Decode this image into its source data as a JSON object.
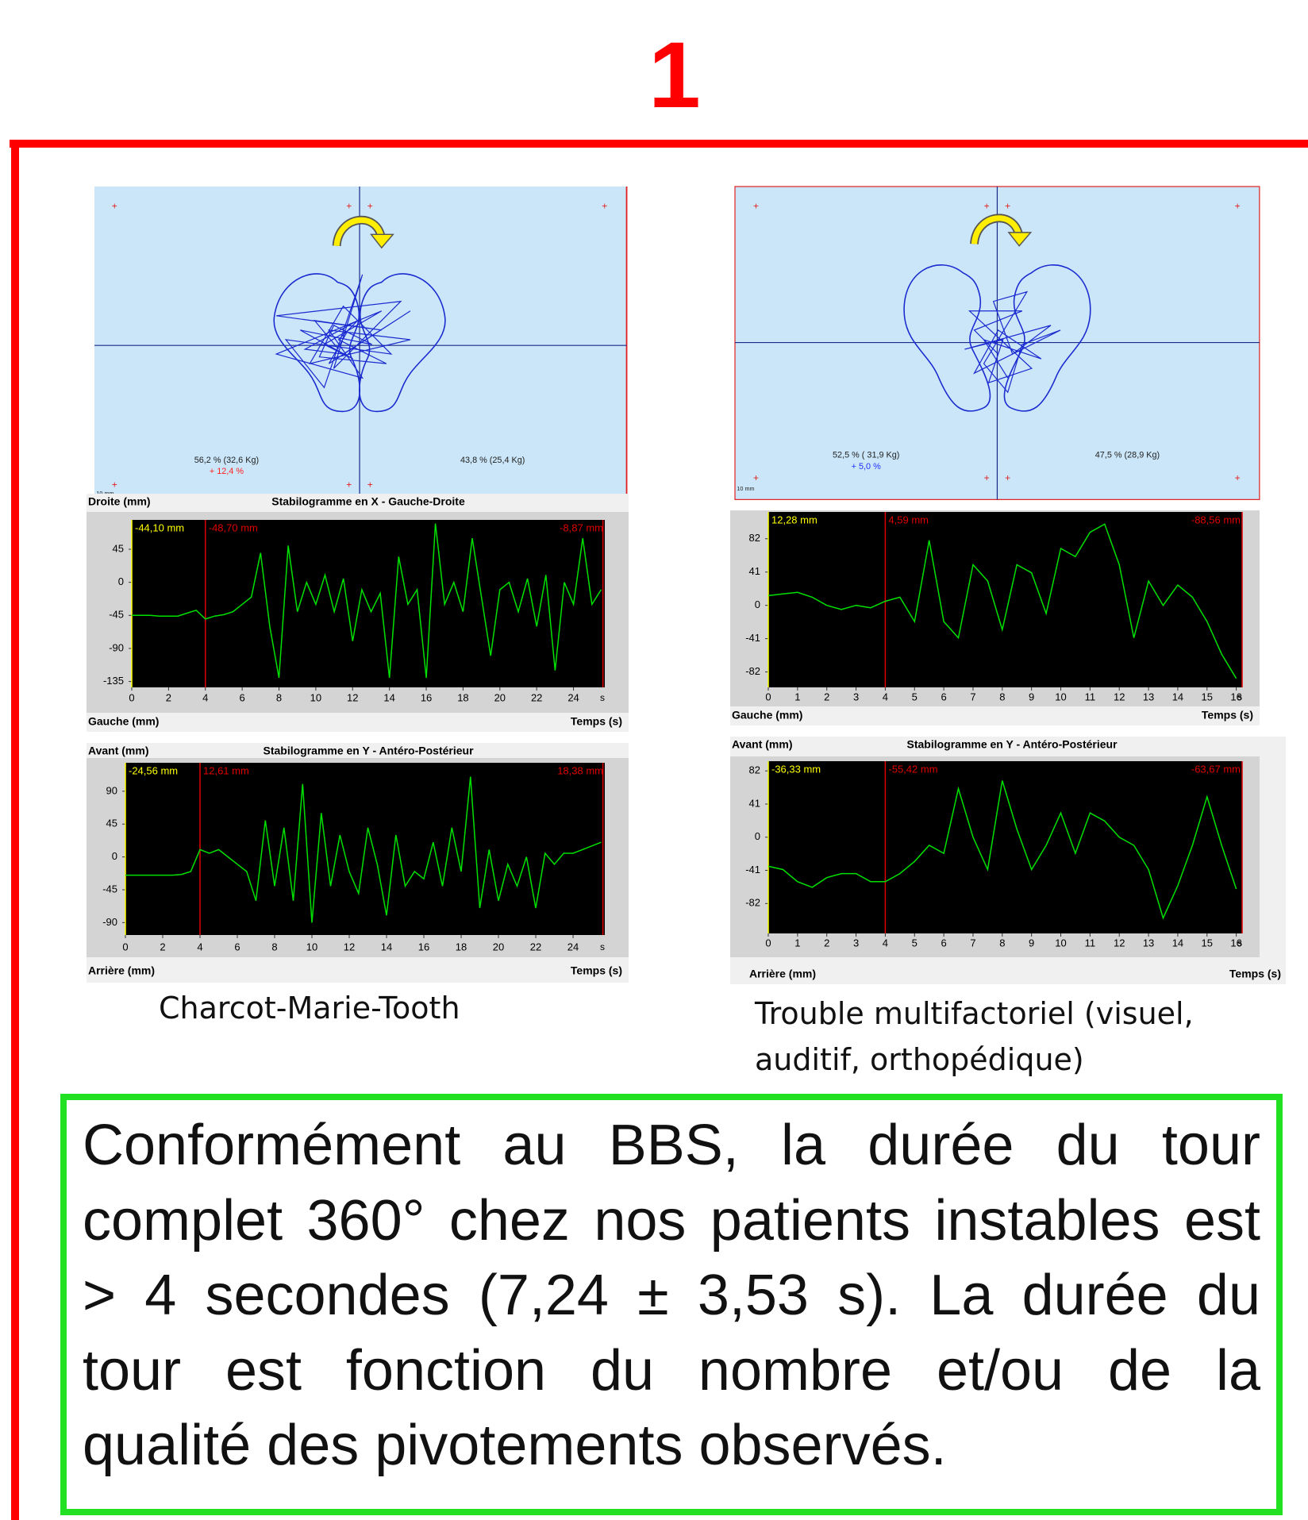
{
  "title": "1",
  "feet": [
    {
      "left_label": "56,2 % (32,6 Kg)",
      "delta": "+ 12,4 %",
      "delta_color": "#ff2020",
      "right_label": "43,8 % (25,4 Kg)",
      "scale": "10 mm"
    },
    {
      "left_label": "52,5 % ( 31,9 Kg)",
      "delta": "+ 5,0 %",
      "delta_color": "#2030ff",
      "right_label": "47,5 % (28,9 Kg)",
      "scale": "10 mm"
    }
  ],
  "chart_data": [
    {
      "type": "line",
      "title": "Stabilogramme en X - Gauche-Droite",
      "y_label_top": "Droite (mm)",
      "y_label_bottom": "Gauche (mm)",
      "x_label": "Temps (s)",
      "x_unit": "s",
      "cursors": [
        {
          "x": 0,
          "label": "-44,10 mm",
          "color": "#ffff00"
        },
        {
          "x": 4,
          "label": "-48,70 mm",
          "color": "#e00000"
        },
        {
          "x": 25.6,
          "label": "-8,87 mm",
          "color": "#e00000"
        }
      ],
      "x": [
        0,
        0.5,
        1,
        1.5,
        2,
        2.5,
        3,
        3.5,
        4,
        4.5,
        5,
        5.5,
        6,
        6.5,
        7,
        7.5,
        8,
        8.5,
        9,
        9.5,
        10,
        10.5,
        11,
        11.5,
        12,
        12.5,
        13,
        13.5,
        14,
        14.5,
        15,
        15.5,
        16,
        16.5,
        17,
        17.5,
        18,
        18.5,
        19,
        19.5,
        20,
        20.5,
        21,
        21.5,
        22,
        22.5,
        23,
        23.5,
        24,
        24.5,
        25,
        25.5
      ],
      "series": [
        {
          "color": "#00e000",
          "values": [
            -45,
            -45,
            -45,
            -46,
            -46,
            -46,
            -42,
            -38,
            -50,
            -46,
            -44,
            -40,
            -30,
            -20,
            40,
            -60,
            -130,
            50,
            -40,
            0,
            -30,
            10,
            -40,
            5,
            -80,
            -10,
            -40,
            -15,
            -130,
            35,
            -30,
            -10,
            -130,
            80,
            -30,
            0,
            -40,
            60,
            -20,
            -100,
            -10,
            0,
            -40,
            5,
            -60,
            10,
            -120,
            0,
            -30,
            60,
            -30,
            -10
          ]
        }
      ],
      "xlim": [
        0,
        25.7
      ],
      "ylim": [
        -143,
        85
      ],
      "xticks": [
        0,
        2,
        4,
        6,
        8,
        10,
        12,
        14,
        16,
        18,
        20,
        22,
        24
      ],
      "yticks": [
        45,
        0,
        -45,
        -90,
        -135
      ]
    },
    {
      "type": "line",
      "title": "Stabilogramme en Y -  Antéro-Postérieur",
      "y_label_top": "Avant (mm)",
      "y_label_bottom": "Arrière (mm)",
      "x_label": "Temps (s)",
      "x_unit": "s",
      "cursors": [
        {
          "x": 0,
          "label": "-24,56 mm",
          "color": "#ffff00"
        },
        {
          "x": 4,
          "label": "12,61 mm",
          "color": "#e00000"
        },
        {
          "x": 25.6,
          "label": "18,38 mm",
          "color": "#e00000"
        }
      ],
      "x": [
        0,
        0.5,
        1,
        1.5,
        2,
        2.5,
        3,
        3.5,
        4,
        4.5,
        5,
        5.5,
        6,
        6.5,
        7,
        7.5,
        8,
        8.5,
        9,
        9.5,
        10,
        10.5,
        11,
        11.5,
        12,
        12.5,
        13,
        13.5,
        14,
        14.5,
        15,
        15.5,
        16,
        16.5,
        17,
        17.5,
        18,
        18.5,
        19,
        19.5,
        20,
        20.5,
        21,
        21.5,
        22,
        22.5,
        23,
        23.5,
        24,
        24.5,
        25,
        25.5
      ],
      "series": [
        {
          "color": "#00e000",
          "values": [
            -25,
            -25,
            -25,
            -25,
            -25,
            -25,
            -24,
            -20,
            10,
            5,
            10,
            0,
            -10,
            -20,
            -60,
            50,
            -40,
            40,
            -60,
            100,
            -90,
            60,
            -40,
            30,
            -20,
            -50,
            40,
            -10,
            -80,
            30,
            -40,
            -20,
            -30,
            20,
            -40,
            40,
            -20,
            110,
            -70,
            10,
            -60,
            -10,
            -40,
            0,
            -70,
            5,
            -10,
            5,
            5,
            10,
            15,
            20
          ]
        }
      ],
      "xlim": [
        0,
        25.7
      ],
      "ylim": [
        -107,
        129
      ],
      "xticks": [
        0,
        2,
        4,
        6,
        8,
        10,
        12,
        14,
        16,
        18,
        20,
        22,
        24
      ],
      "yticks": [
        90,
        45,
        0,
        -45,
        -90
      ]
    },
    {
      "type": "line",
      "y_label_bottom": "Gauche (mm)",
      "x_label": "Temps (s)",
      "x_unit": "s",
      "cursors": [
        {
          "x": 0,
          "label": "12,28 mm",
          "color": "#ffff00"
        },
        {
          "x": 4,
          "label": "4,59 mm",
          "color": "#e00000"
        },
        {
          "x": 16.2,
          "label": "-88,56 mm",
          "color": "#e00000"
        }
      ],
      "x": [
        0,
        0.5,
        1,
        1.5,
        2,
        2.5,
        3,
        3.5,
        4,
        4.5,
        5,
        5.5,
        6,
        6.5,
        7,
        7.5,
        8,
        8.5,
        9,
        9.5,
        10,
        10.5,
        11,
        11.5,
        12,
        12.5,
        13,
        13.5,
        14,
        14.5,
        15,
        15.5,
        16
      ],
      "series": [
        {
          "color": "#00e000",
          "values": [
            12,
            14,
            16,
            10,
            0,
            -5,
            0,
            -3,
            5,
            10,
            -20,
            80,
            -20,
            -40,
            50,
            30,
            -30,
            50,
            40,
            -10,
            70,
            60,
            90,
            100,
            50,
            -40,
            30,
            0,
            25,
            10,
            -20,
            -60,
            -90
          ]
        }
      ],
      "xlim": [
        0,
        16.2
      ],
      "ylim": [
        -101,
        115
      ],
      "xticks": [
        0,
        1,
        2,
        3,
        4,
        5,
        6,
        7,
        8,
        9,
        10,
        11,
        12,
        13,
        14,
        15,
        16
      ],
      "yticks": [
        82,
        41,
        0,
        -41,
        -82
      ]
    },
    {
      "type": "line",
      "title": "Stabilogramme en Y -  Antéro-Postérieur",
      "y_label_top": "Avant (mm)",
      "y_label_bottom": "Arrière (mm)",
      "x_label": "Temps (s)",
      "x_unit": "s",
      "cursors": [
        {
          "x": 0,
          "label": "-36,33 mm",
          "color": "#ffff00"
        },
        {
          "x": 4,
          "label": "-55,42 mm",
          "color": "#e00000"
        },
        {
          "x": 16.2,
          "label": "-63,67 mm",
          "color": "#e00000"
        }
      ],
      "x": [
        0,
        0.5,
        1,
        1.5,
        2,
        2.5,
        3,
        3.5,
        4,
        4.5,
        5,
        5.5,
        6,
        6.5,
        7,
        7.5,
        8,
        8.5,
        9,
        9.5,
        10,
        10.5,
        11,
        11.5,
        12,
        12.5,
        13,
        13.5,
        14,
        14.5,
        15,
        15.5,
        16
      ],
      "series": [
        {
          "color": "#00e000",
          "values": [
            -36,
            -40,
            -55,
            -62,
            -50,
            -45,
            -45,
            -55,
            -55,
            -45,
            -30,
            -10,
            -20,
            60,
            0,
            -40,
            70,
            10,
            -40,
            -10,
            30,
            -20,
            30,
            20,
            0,
            -10,
            -40,
            -100,
            -60,
            -10,
            50,
            -10,
            -64
          ]
        }
      ],
      "xlim": [
        0,
        16.2
      ],
      "ylim": [
        -119,
        94
      ],
      "xticks": [
        0,
        1,
        2,
        3,
        4,
        5,
        6,
        7,
        8,
        9,
        10,
        11,
        12,
        13,
        14,
        15,
        16
      ],
      "yticks": [
        82,
        41,
        0,
        -41,
        -82
      ]
    }
  ],
  "captions": [
    [
      "Charcot-Marie-Tooth"
    ],
    [
      "Trouble multifactoriel (visuel,",
      "auditif, orthopédique)"
    ]
  ],
  "conclusion": {
    "lines": [
      "Conformément au BBS, la durée du tour",
      "complet 360° chez nos patients instables est",
      "> 4 secondes (7,24 ± 3,53 s). La durée du",
      "tour est fonction du nombre et/ou de la",
      "qualité des pivotements observés."
    ]
  }
}
